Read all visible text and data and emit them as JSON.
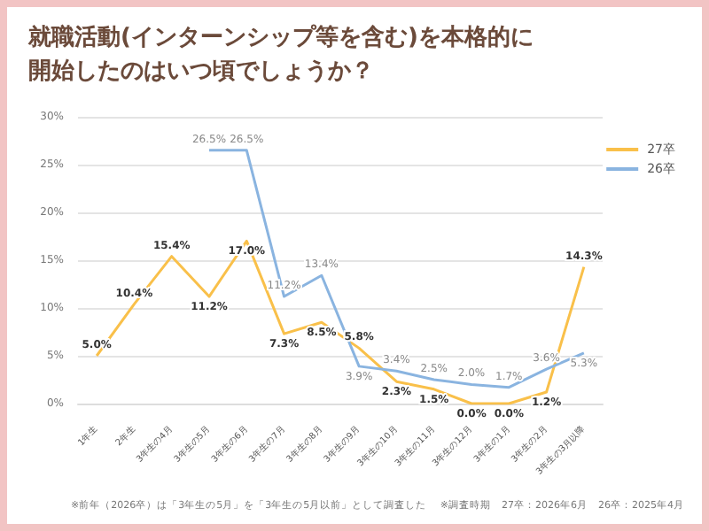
{
  "chart_data": {
    "type": "line",
    "title": "就職活動(インターンシップ等を含む)を本格的に開始したのはいつ頃でしょうか？",
    "categories": [
      "1年生",
      "2年生",
      "3年生の4月",
      "3年生の5月",
      "3年生の6月",
      "3年生の7月",
      "3年生の8月",
      "3年生の9月",
      "3年生の10月",
      "3年生の11月",
      "3年生の12月",
      "3年生の1月",
      "3年生の2月",
      "3年生の3月以降"
    ],
    "series": [
      {
        "name": "27卒",
        "color": "#f9c04a",
        "values": [
          5.0,
          10.4,
          15.4,
          11.2,
          17.0,
          7.3,
          8.5,
          5.8,
          2.3,
          1.5,
          0.0,
          0.0,
          1.2,
          14.3
        ],
        "value_labels": [
          "5.0%",
          "10.4%",
          "15.4%",
          "11.2%",
          "17.0%",
          "7.3%",
          "8.5%",
          "5.8%",
          "2.3%",
          "1.5%",
          "0.0%",
          "0.0%",
          "1.2%",
          "14.3%"
        ]
      },
      {
        "name": "26卒",
        "color": "#8ab4e0",
        "values": [
          null,
          null,
          null,
          26.5,
          26.5,
          11.2,
          13.4,
          3.9,
          3.4,
          2.5,
          2.0,
          1.7,
          3.6,
          5.3
        ],
        "value_labels": [
          null,
          null,
          null,
          "26.5%",
          "26.5%",
          "11.2%",
          "13.4%",
          "3.9%",
          "3.4%",
          "2.5%",
          "2.0%",
          "1.7%",
          "3.6%",
          "5.3%"
        ]
      }
    ],
    "ylim": [
      0,
      30
    ],
    "yticks": [
      {
        "value": 0,
        "label": "0%"
      },
      {
        "value": 5,
        "label": "5%"
      },
      {
        "value": 10,
        "label": "10%"
      },
      {
        "value": 15,
        "label": "15%"
      },
      {
        "value": 20,
        "label": "20%"
      },
      {
        "value": 25,
        "label": "25%"
      },
      {
        "value": 30,
        "label": "30%"
      }
    ],
    "grid": "y",
    "legend": "right",
    "marker": "none",
    "line_style": "solid",
    "annotations": [
      "※前年（2026卒）は「3年生の5月」を「3年生の5月以前」として調査した",
      "※調査時期　27卒：2026年6月　26卒：2025年4月"
    ]
  }
}
